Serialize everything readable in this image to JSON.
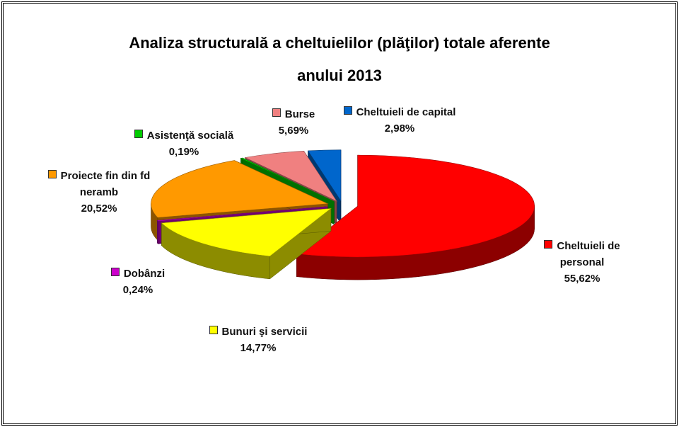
{
  "chart_data": {
    "type": "pie3d",
    "title": "Analiza structurală a cheltuielilor (plăţilor) totale aferente anului 2013",
    "categories": [
      "Cheltuieli de personal",
      "Bunuri şi servicii",
      "Dobânzi",
      "Proiecte fin din fd neramb",
      "Asistenţă socială",
      "Burse",
      "Cheltuieli de capital"
    ],
    "values": [
      55.62,
      14.77,
      0.24,
      20.52,
      0.19,
      5.69,
      2.98
    ],
    "value_labels": [
      "55,62%",
      "14,77%",
      "0,24%",
      "20,52%",
      "0,19%",
      "5,69%",
      "2,98%"
    ],
    "colors": [
      "#ff0000",
      "#ffff00",
      "#cc00cc",
      "#ff9900",
      "#00cc00",
      "#f08080",
      "#0066cc"
    ]
  }
}
